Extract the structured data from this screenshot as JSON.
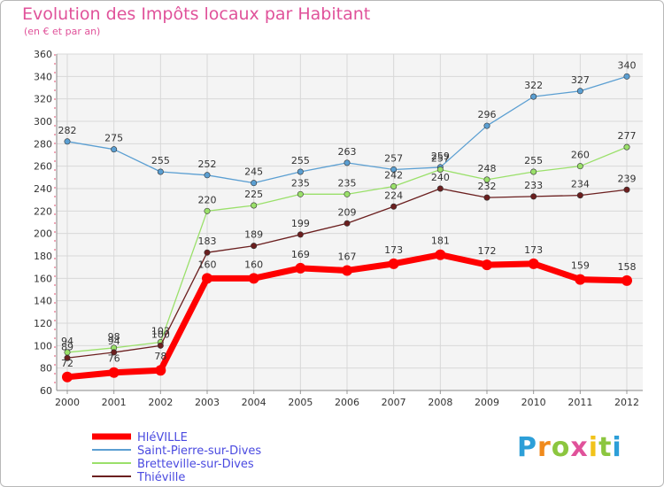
{
  "title": "Evolution des Impôts locaux par Habitant",
  "subtitle": "(en € et par an)",
  "logo_text": "Proxiti",
  "chart_data": {
    "type": "line",
    "title": "Evolution des Impôts locaux par Habitant",
    "subtitle": "(en € et par an)",
    "xlabel": "",
    "ylabel": "",
    "ylim": [
      60,
      360
    ],
    "yticks": [
      60,
      80,
      100,
      120,
      140,
      160,
      180,
      200,
      220,
      240,
      260,
      280,
      300,
      320,
      340,
      360
    ],
    "x": [
      "2000",
      "2001",
      "2002",
      "2003",
      "2004",
      "2005",
      "2006",
      "2007",
      "2008",
      "2009",
      "2010",
      "2011",
      "2012"
    ],
    "grid": true,
    "legend_position": "bottom-left",
    "series": [
      {
        "name": "HléVILLE",
        "color": "#ff0000",
        "bold": true,
        "values": [
          72,
          76,
          78,
          160,
          160,
          169,
          167,
          173,
          181,
          172,
          173,
          159,
          158
        ]
      },
      {
        "name": "Saint-Pierre-sur-Dives",
        "color": "#5b9fd2",
        "values": [
          282,
          275,
          255,
          252,
          245,
          255,
          263,
          257,
          259,
          296,
          322,
          327,
          340
        ]
      },
      {
        "name": "Bretteville-sur-Dives",
        "color": "#9ae06a",
        "values": [
          94,
          98,
          103,
          220,
          225,
          235,
          235,
          242,
          257,
          248,
          255,
          260,
          277
        ]
      },
      {
        "name": "Thiéville",
        "color": "#6b1f1f",
        "values": [
          89,
          94,
          100,
          183,
          189,
          199,
          209,
          224,
          240,
          232,
          233,
          234,
          239
        ]
      }
    ]
  }
}
